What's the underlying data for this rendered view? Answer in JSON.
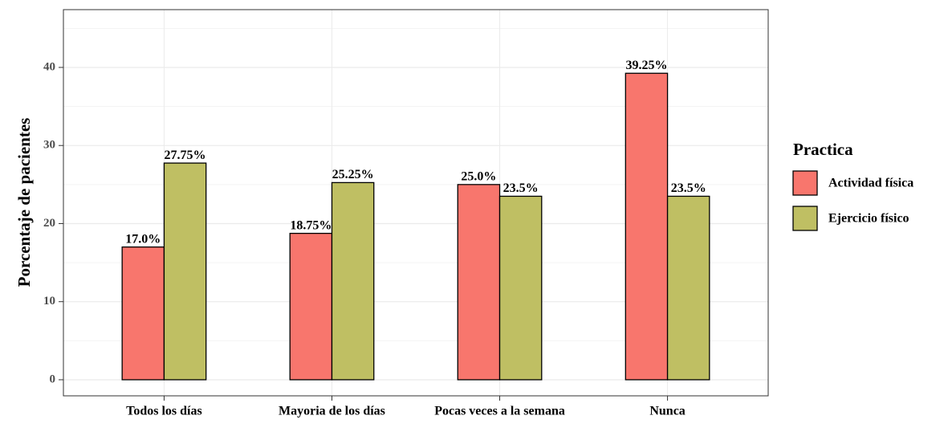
{
  "chart_data": {
    "type": "bar",
    "y_label": "Porcentaje de pacientes",
    "categories": [
      "Todos los días",
      "Mayoria de los días",
      "Pocas veces a la semana",
      "Nunca"
    ],
    "series": [
      {
        "name": "Actividad física",
        "color": "#f8766d",
        "values": [
          17.0,
          18.75,
          25.0,
          39.25
        ],
        "value_labels": [
          "17.0%",
          "18.75%",
          "25.0%",
          "39.25%"
        ]
      },
      {
        "name": "Ejercicio físico",
        "color": "#bfbf63",
        "values": [
          27.75,
          25.25,
          23.5,
          23.5
        ],
        "value_labels": [
          "27.75%",
          "25.25%",
          "23.5%",
          "23.5%"
        ]
      }
    ],
    "legend_title": "Practica",
    "legend": "right",
    "ylim": [
      -2.06,
      47.4
    ],
    "yticks": [
      0,
      10,
      20,
      30,
      40
    ],
    "y_minor_ticks": [
      5,
      15,
      25,
      35,
      45
    ],
    "grid": true
  }
}
